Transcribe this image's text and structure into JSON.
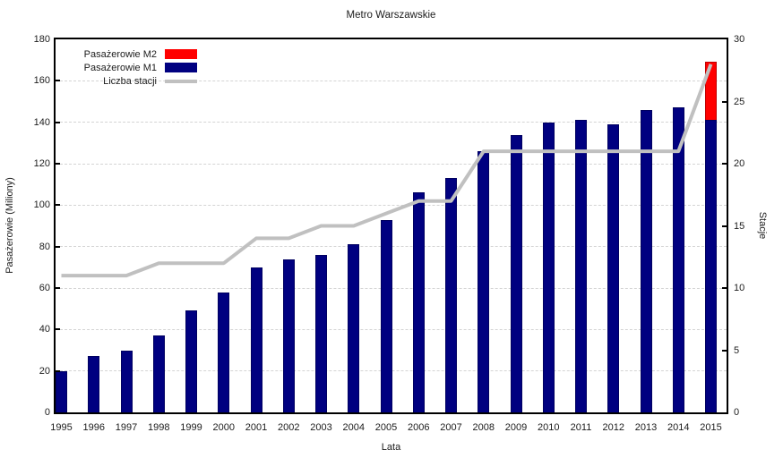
{
  "chart_data": {
    "type": "bar",
    "subtype": "stacked bars + line on secondary axis",
    "title": "Metro Warszawskie",
    "xlabel": "Lata",
    "ylabel_left": "Pasażerowie (Miliony)",
    "ylabel_right": "Stacje",
    "ylim_left": [
      0,
      180
    ],
    "ylim_right": [
      0,
      30
    ],
    "y_ticks_left": [
      0,
      20,
      40,
      60,
      80,
      100,
      120,
      140,
      160,
      180
    ],
    "y_ticks_right": [
      0,
      5,
      10,
      15,
      20,
      25,
      30
    ],
    "grid": "horizontal dashed",
    "legend_position": "top-left inside plot",
    "categories": [
      "1995",
      "1996",
      "1997",
      "1998",
      "1999",
      "2000",
      "2001",
      "2002",
      "2003",
      "2004",
      "2005",
      "2006",
      "2007",
      "2008",
      "2009",
      "2010",
      "2011",
      "2012",
      "2013",
      "2014",
      "2015"
    ],
    "series": [
      {
        "name": "Pasażerowie M2",
        "type": "bar",
        "axis": "left",
        "color": "#ff0000",
        "values": [
          0,
          0,
          0,
          0,
          0,
          0,
          0,
          0,
          0,
          0,
          0,
          0,
          0,
          0,
          0,
          0,
          0,
          0,
          0,
          0,
          28
        ]
      },
      {
        "name": "Pasażerowie M1",
        "type": "bar",
        "axis": "left",
        "color": "#000080",
        "values": [
          20,
          27,
          30,
          37,
          49,
          58,
          70,
          74,
          76,
          81,
          93,
          106,
          113,
          126,
          134,
          140,
          141,
          139,
          146,
          147,
          141
        ]
      },
      {
        "name": "Liczba stacji",
        "type": "line",
        "axis": "right",
        "color": "#c0c0c0",
        "values": [
          11,
          11,
          11,
          12,
          12,
          12,
          14,
          14,
          15,
          15,
          16,
          17,
          17,
          21,
          21,
          21,
          21,
          21,
          21,
          21,
          28
        ]
      }
    ]
  }
}
